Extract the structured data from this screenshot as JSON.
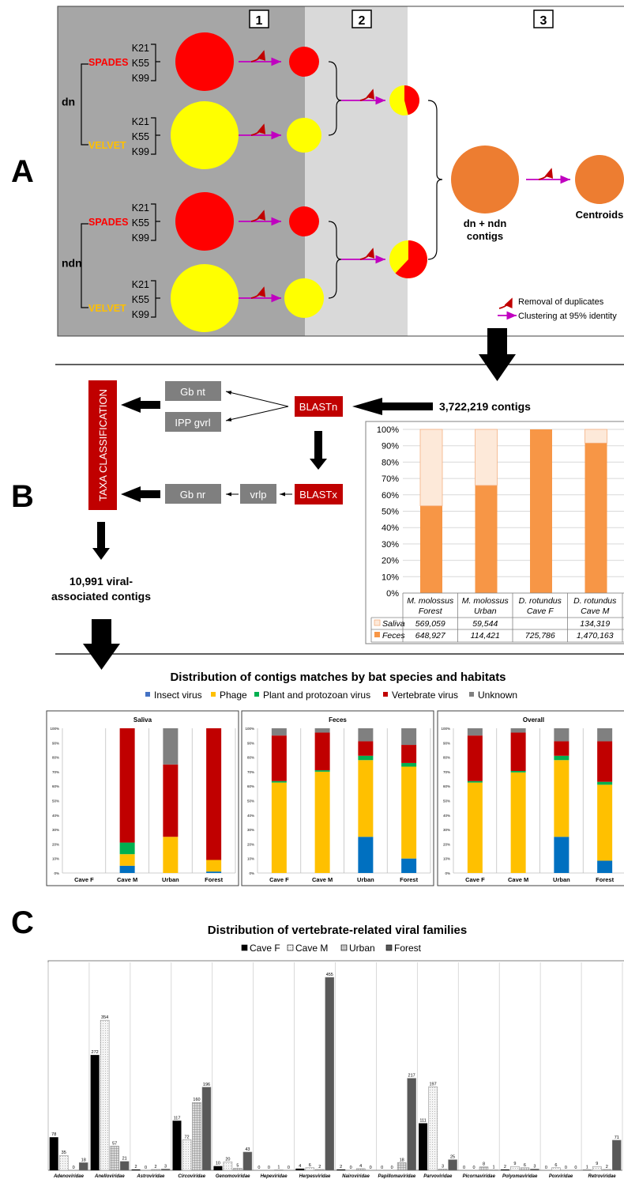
{
  "panel_letters": {
    "a": "A",
    "b": "B",
    "c": "C"
  },
  "panel_a": {
    "steps": [
      "1",
      "2",
      "3"
    ],
    "groups": [
      {
        "label": "dn",
        "assemblers": [
          {
            "name": "SPADES",
            "color": "#ff0000",
            "kmers": [
              "K21",
              "K55",
              "K99"
            ]
          },
          {
            "name": "VELVET",
            "color": "#ffff00",
            "kmers": [
              "K21",
              "K55",
              "K99"
            ]
          }
        ]
      },
      {
        "label": "ndn",
        "assemblers": [
          {
            "name": "SPADES",
            "color": "#ff0000",
            "kmers": [
              "K21",
              "K55",
              "K99"
            ]
          },
          {
            "name": "VELVET",
            "color": "#ffff00",
            "kmers": [
              "K21",
              "K55",
              "K99"
            ]
          }
        ]
      }
    ],
    "pie_fractions": [
      0.46,
      0.62
    ],
    "merged_label": [
      "dn + ndn",
      "contigs"
    ],
    "centroids_label": "Centroids",
    "merged_color": "#ed7d31",
    "legend": {
      "removal": "Removal of duplicates",
      "clustering": "Clustering at 95% identity"
    }
  },
  "panel_b": {
    "taxa": "TAXA CLASSIFICATION",
    "gb_nt": "Gb nt",
    "ipp": "IPP gvrl",
    "blastn": "BLASTn",
    "blastx": "BLASTx",
    "gb_nr": "Gb nr",
    "vrlp": "vrlp",
    "contigs": "3,722,219 contigs",
    "viral": [
      "10,991 viral-",
      "associated contigs"
    ]
  },
  "chart_data": [
    {
      "type": "bar",
      "stacked": true,
      "percent": true,
      "categories": [
        [
          "M. molossus",
          "Forest"
        ],
        [
          "M. molossus",
          "Urban"
        ],
        [
          "D. rotundus",
          "Cave F"
        ],
        [
          "D. rotundus",
          "Cave M"
        ]
      ],
      "series": [
        {
          "name": "Feces",
          "color": "#f79646",
          "values": [
            648927,
            114421,
            725786,
            1470163
          ],
          "labels": [
            "648,927",
            "114,421",
            "725,786",
            "1,470,163"
          ]
        },
        {
          "name": "Saliva",
          "color": "#fde9d9",
          "values": [
            569059,
            59544,
            0,
            134319
          ],
          "labels": [
            "569,059",
            "59,544",
            "",
            "134,319"
          ]
        }
      ],
      "yticks": [
        "0%",
        "10%",
        "20%",
        "30%",
        "40%",
        "50%",
        "60%",
        "70%",
        "80%",
        "90%",
        "100%"
      ]
    },
    {
      "type": "bar",
      "stacked": true,
      "percent": true,
      "title": "Distribution of contigs matches by bat species and habitats",
      "legend": [
        {
          "name": "Insect virus",
          "color": "#4472c4"
        },
        {
          "name": "Phage",
          "color": "#ffc000"
        },
        {
          "name": "Plant and protozoan virus",
          "color": "#00b050"
        },
        {
          "name": "Vertebrate  virus",
          "color": "#c00000"
        },
        {
          "name": "Unknown",
          "color": "#808080"
        }
      ],
      "colors": [
        "#0070c0",
        "#ffc000",
        "#00b050",
        "#c00000",
        "#808080"
      ],
      "yticks": [
        "0%",
        "10%",
        "20%",
        "30%",
        "40%",
        "50%",
        "60%",
        "70%",
        "80%",
        "90%",
        "100%"
      ],
      "categories": [
        "Cave F",
        "Cave M",
        "Urban",
        "Forest"
      ],
      "panels": [
        {
          "title": "Saliva",
          "stacks": [
            null,
            [
              5,
              8,
              8,
              79,
              0
            ],
            [
              0,
              25,
              0,
              50,
              25
            ],
            [
              1,
              8,
              0,
              91,
              0
            ]
          ]
        },
        {
          "title": "Feces",
          "stacks": [
            [
              0,
              62.5,
              1,
              31.5,
              5
            ],
            [
              0,
              70,
              1,
              26,
              3
            ],
            [
              25,
              53,
              3,
              10,
              9
            ],
            [
              10,
              63.5,
              2.5,
              12.5,
              11.5
            ]
          ]
        },
        {
          "title": "Overall",
          "stacks": [
            [
              0,
              62.5,
              1,
              31.5,
              5
            ],
            [
              0,
              69.5,
              1,
              26.5,
              3
            ],
            [
              25,
              53,
              3,
              10,
              9
            ],
            [
              8.5,
              52.5,
              2,
              28,
              9
            ]
          ]
        }
      ]
    },
    {
      "type": "bar",
      "title": "Distribution of vertebrate-related viral families",
      "series": [
        {
          "name": "Cave F",
          "color": "#000000"
        },
        {
          "name": "Cave M",
          "color": "#f2f2f2"
        },
        {
          "name": "Urban",
          "color": "#d9d9d9"
        },
        {
          "name": "Forest",
          "color": "#595959"
        }
      ],
      "families": [
        {
          "name": "Adenoviridae",
          "values": [
            78,
            35,
            0,
            18
          ]
        },
        {
          "name": "Anelloviridae",
          "values": [
            272,
            354,
            57,
            21
          ]
        },
        {
          "name": "Astroviridae",
          "values": [
            2,
            0,
            2,
            3
          ]
        },
        {
          "name": "Circoviridae",
          "values": [
            117,
            72,
            160,
            196
          ]
        },
        {
          "name": "Genomoviridae",
          "values": [
            10,
            20,
            5,
            43
          ]
        },
        {
          "name": "Hepeviridae",
          "values": [
            0,
            0,
            1,
            0
          ]
        },
        {
          "name": "Herpesviridae",
          "values": [
            4,
            6,
            2,
            455
          ]
        },
        {
          "name": "Nairoviridae",
          "values": [
            2,
            0,
            4,
            0
          ]
        },
        {
          "name": "Papillomaviridae",
          "values": [
            0,
            0,
            18,
            217
          ]
        },
        {
          "name": "Parvoviridae",
          "values": [
            111,
            197,
            3,
            25
          ]
        },
        {
          "name": "Picornaviridae",
          "values": [
            0,
            0,
            8,
            1
          ]
        },
        {
          "name": "Polyomaviridae",
          "values": [
            2,
            9,
            6,
            3
          ]
        },
        {
          "name": "Poxviridae",
          "values": [
            0,
            6,
            0,
            0
          ]
        },
        {
          "name": "Retroviridae",
          "values": [
            1,
            9,
            2,
            71
          ]
        }
      ]
    }
  ]
}
